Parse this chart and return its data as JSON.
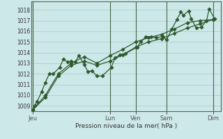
{
  "background_color": "#cde8e8",
  "grid_color": "#b8d8d8",
  "plot_bg": "#cde8e8",
  "line_color": "#2d5a2d",
  "marker_color": "#2d5a2d",
  "xlabel": "Pression niveau de la mer( hPa )",
  "ylim": [
    1008.5,
    1018.8
  ],
  "yticks": [
    1009,
    1010,
    1011,
    1012,
    1013,
    1014,
    1015,
    1016,
    1017,
    1018
  ],
  "day_labels": [
    "Jeu",
    "Lun",
    "Ven",
    "Sam",
    "Dim"
  ],
  "day_x": [
    0,
    3.0,
    4.0,
    5.2,
    7.0
  ],
  "vline_x": [
    0,
    3.0,
    4.0,
    5.2,
    7.0
  ],
  "xlim": [
    -0.05,
    7.3
  ],
  "series1": [
    [
      0.0,
      1008.6
    ],
    [
      0.08,
      1009.0
    ],
    [
      0.18,
      1009.4
    ],
    [
      0.35,
      1010.3
    ],
    [
      0.5,
      1011.2
    ],
    [
      0.65,
      1012.0
    ],
    [
      0.8,
      1012.0
    ],
    [
      1.05,
      1012.6
    ],
    [
      1.2,
      1013.4
    ],
    [
      1.35,
      1013.1
    ],
    [
      1.5,
      1013.2
    ],
    [
      1.65,
      1013.1
    ],
    [
      1.8,
      1013.7
    ],
    [
      2.0,
      1012.9
    ],
    [
      2.15,
      1012.2
    ],
    [
      2.3,
      1012.3
    ],
    [
      2.5,
      1011.8
    ],
    [
      2.7,
      1011.8
    ],
    [
      3.05,
      1012.6
    ],
    [
      3.2,
      1013.5
    ],
    [
      3.4,
      1013.8
    ],
    [
      3.6,
      1013.9
    ],
    [
      4.05,
      1014.5
    ],
    [
      4.2,
      1015.0
    ],
    [
      4.4,
      1015.5
    ],
    [
      4.6,
      1015.5
    ],
    [
      4.8,
      1015.4
    ],
    [
      5.05,
      1015.5
    ],
    [
      5.2,
      1015.2
    ],
    [
      5.4,
      1016.2
    ],
    [
      5.6,
      1017.1
    ],
    [
      5.75,
      1017.8
    ],
    [
      5.85,
      1017.5
    ],
    [
      6.05,
      1017.9
    ],
    [
      6.15,
      1017.2
    ],
    [
      6.35,
      1016.3
    ],
    [
      6.55,
      1016.4
    ],
    [
      6.75,
      1017.0
    ],
    [
      6.85,
      1018.1
    ],
    [
      7.05,
      1017.2
    ]
  ],
  "series2": [
    [
      0.0,
      1008.6
    ],
    [
      0.5,
      1009.8
    ],
    [
      1.0,
      1011.8
    ],
    [
      1.5,
      1012.8
    ],
    [
      2.0,
      1013.2
    ],
    [
      2.5,
      1012.8
    ],
    [
      3.0,
      1013.2
    ],
    [
      3.5,
      1013.8
    ],
    [
      4.0,
      1014.5
    ],
    [
      4.5,
      1015.0
    ],
    [
      5.0,
      1015.3
    ],
    [
      5.5,
      1015.8
    ],
    [
      6.0,
      1016.3
    ],
    [
      6.5,
      1016.7
    ],
    [
      7.0,
      1017.1
    ]
  ],
  "series3": [
    [
      0.0,
      1008.6
    ],
    [
      0.5,
      1010.0
    ],
    [
      1.0,
      1012.0
    ],
    [
      1.5,
      1013.0
    ],
    [
      2.0,
      1013.6
    ],
    [
      2.5,
      1013.0
    ],
    [
      3.0,
      1013.7
    ],
    [
      3.5,
      1014.3
    ],
    [
      4.0,
      1015.0
    ],
    [
      4.5,
      1015.4
    ],
    [
      5.0,
      1015.7
    ],
    [
      5.5,
      1016.2
    ],
    [
      6.0,
      1016.8
    ],
    [
      6.5,
      1017.0
    ],
    [
      7.0,
      1017.1
    ]
  ]
}
